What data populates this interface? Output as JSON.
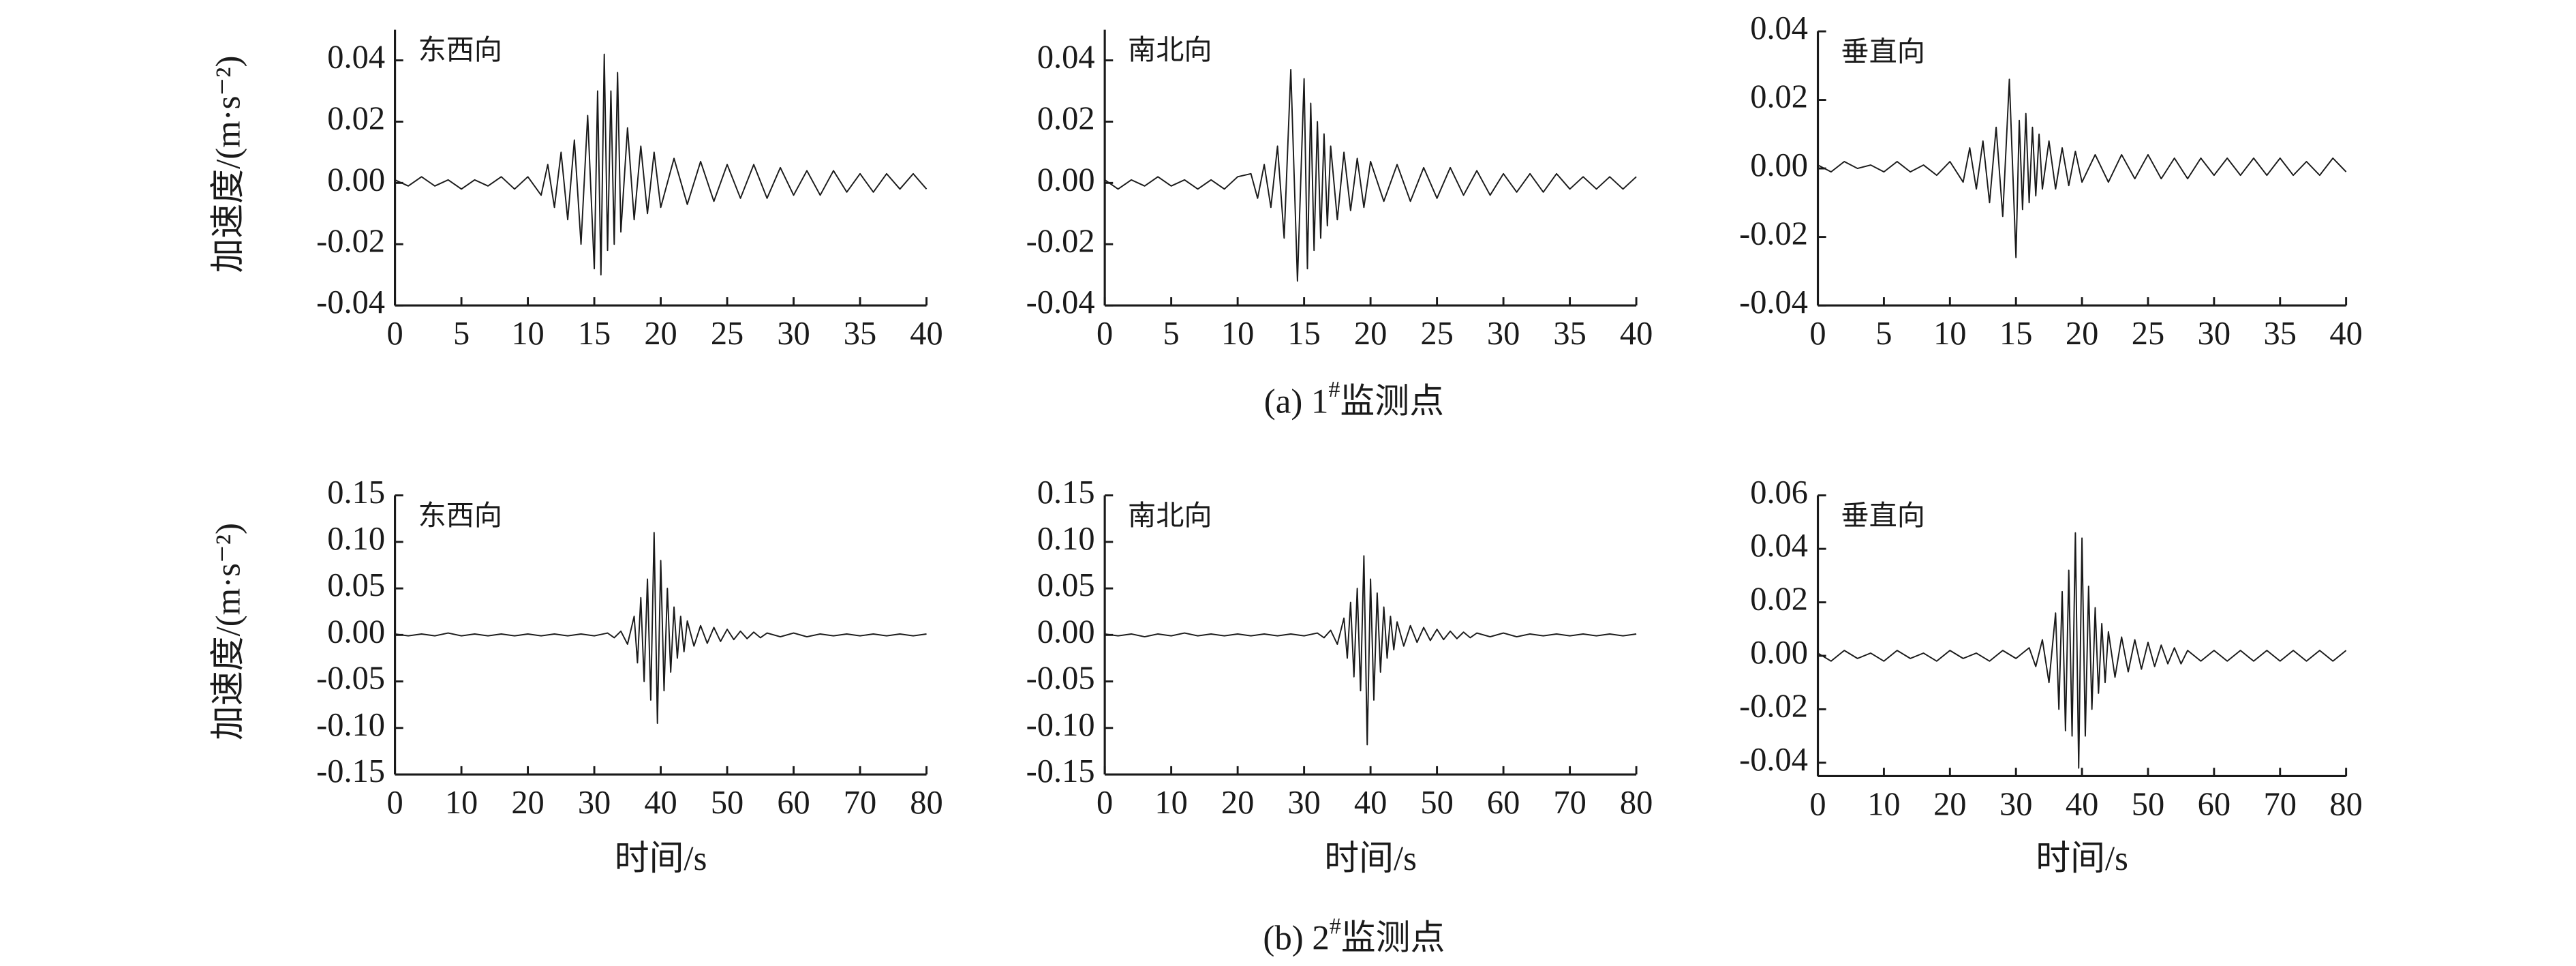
{
  "captions": [
    {
      "prefix": "(a) 1",
      "sup": "#",
      "suffix": "监测点"
    },
    {
      "prefix": "(b) 2",
      "sup": "#",
      "suffix": "监测点"
    }
  ],
  "chart_data": [
    {
      "type": "line",
      "title": "东西向",
      "y_label": "加速度/(m·s⁻²)",
      "xlim": [
        0,
        40
      ],
      "ylim": [
        -0.04,
        0.05
      ],
      "xticks": [
        0,
        5,
        10,
        15,
        20,
        25,
        30,
        35,
        40
      ],
      "yticks": [
        -0.04,
        -0.02,
        {
          "value": 0,
          "label": "0.00"
        },
        0.02,
        0.04
      ],
      "x": [
        0,
        1,
        2,
        3,
        4,
        5,
        6,
        7,
        8,
        9,
        10,
        11,
        11.5,
        12,
        12.5,
        13,
        13.5,
        14,
        14.5,
        15,
        15.25,
        15.5,
        15.75,
        16,
        16.25,
        16.5,
        16.75,
        17,
        17.5,
        18,
        18.5,
        19,
        19.5,
        20,
        21,
        22,
        23,
        24,
        25,
        26,
        27,
        28,
        29,
        30,
        31,
        32,
        33,
        34,
        35,
        36,
        37,
        38,
        39,
        40
      ],
      "series": [
        {
          "color": "#1a1a1a",
          "values": [
            0.001,
            -0.001,
            0.002,
            -0.001,
            0.001,
            -0.002,
            0.001,
            -0.001,
            0.002,
            -0.002,
            0.002,
            -0.004,
            0.006,
            -0.008,
            0.01,
            -0.012,
            0.014,
            -0.02,
            0.022,
            -0.028,
            0.03,
            -0.03,
            0.042,
            -0.022,
            0.03,
            -0.02,
            0.036,
            -0.016,
            0.018,
            -0.012,
            0.012,
            -0.01,
            0.01,
            -0.008,
            0.008,
            -0.007,
            0.007,
            -0.006,
            0.006,
            -0.005,
            0.006,
            -0.005,
            0.005,
            -0.004,
            0.004,
            -0.004,
            0.004,
            -0.003,
            0.003,
            -0.003,
            0.003,
            -0.002,
            0.003,
            -0.002
          ]
        }
      ]
    },
    {
      "type": "line",
      "title": "南北向",
      "xlim": [
        0,
        40
      ],
      "ylim": [
        -0.04,
        0.05
      ],
      "xticks": [
        0,
        5,
        10,
        15,
        20,
        25,
        30,
        35,
        40
      ],
      "yticks": [
        -0.04,
        -0.02,
        {
          "value": 0,
          "label": "0.00"
        },
        0.02,
        0.04
      ],
      "x": [
        0,
        1,
        2,
        3,
        4,
        5,
        6,
        7,
        8,
        9,
        10,
        11,
        11.5,
        12,
        12.5,
        13,
        13.5,
        14,
        14.5,
        15,
        15.25,
        15.5,
        15.75,
        16,
        16.25,
        16.5,
        16.75,
        17,
        17.5,
        18,
        18.5,
        19,
        19.5,
        20,
        21,
        22,
        23,
        24,
        25,
        26,
        27,
        28,
        29,
        30,
        31,
        32,
        33,
        34,
        35,
        36,
        37,
        38,
        39,
        40
      ],
      "series": [
        {
          "color": "#1a1a1a",
          "values": [
            0.001,
            -0.002,
            0.001,
            -0.001,
            0.002,
            -0.001,
            0.001,
            -0.002,
            0.001,
            -0.002,
            0.002,
            0.003,
            -0.005,
            0.006,
            -0.008,
            0.012,
            -0.018,
            0.037,
            -0.032,
            0.034,
            -0.028,
            0.026,
            -0.022,
            0.02,
            -0.018,
            0.016,
            -0.014,
            0.012,
            -0.012,
            0.01,
            -0.009,
            0.008,
            -0.008,
            0.007,
            -0.006,
            0.006,
            -0.006,
            0.005,
            -0.005,
            0.005,
            -0.004,
            0.004,
            -0.004,
            0.003,
            -0.003,
            0.003,
            -0.003,
            0.003,
            -0.002,
            0.002,
            -0.002,
            0.002,
            -0.002,
            0.002
          ]
        }
      ]
    },
    {
      "type": "line",
      "title": "垂直向",
      "xlim": [
        0,
        40
      ],
      "ylim": [
        -0.04,
        0.04
      ],
      "xticks": [
        0,
        5,
        10,
        15,
        20,
        25,
        30,
        35,
        40
      ],
      "yticks": [
        -0.04,
        -0.02,
        {
          "value": 0,
          "label": "0.00"
        },
        0.02,
        0.04
      ],
      "x": [
        0,
        1,
        2,
        3,
        4,
        5,
        6,
        7,
        8,
        9,
        10,
        11,
        11.5,
        12,
        12.5,
        13,
        13.5,
        14,
        14.5,
        15,
        15.25,
        15.5,
        15.75,
        16,
        16.25,
        16.5,
        16.75,
        17,
        17.5,
        18,
        18.5,
        19,
        19.5,
        20,
        21,
        22,
        23,
        24,
        25,
        26,
        27,
        28,
        29,
        30,
        31,
        32,
        33,
        34,
        35,
        36,
        37,
        38,
        39,
        40
      ],
      "series": [
        {
          "color": "#1a1a1a",
          "values": [
            0.001,
            -0.001,
            0.002,
            0,
            0.001,
            -0.001,
            0.002,
            -0.001,
            0.001,
            -0.002,
            0.002,
            -0.004,
            0.006,
            -0.006,
            0.008,
            -0.01,
            0.012,
            -0.014,
            0.026,
            -0.026,
            0.014,
            -0.012,
            0.016,
            -0.01,
            0.012,
            -0.008,
            0.01,
            -0.006,
            0.008,
            -0.006,
            0.006,
            -0.005,
            0.005,
            -0.004,
            0.004,
            -0.004,
            0.004,
            -0.003,
            0.004,
            -0.003,
            0.003,
            -0.003,
            0.003,
            -0.002,
            0.003,
            -0.002,
            0.003,
            -0.002,
            0.003,
            -0.002,
            0.002,
            -0.002,
            0.003,
            -0.001
          ]
        }
      ]
    },
    {
      "type": "line",
      "title": "东西向",
      "y_label": "加速度/(m·s⁻²)",
      "x_label": "时间/s",
      "xlim": [
        0,
        80
      ],
      "ylim": [
        -0.15,
        0.15
      ],
      "xticks": [
        0,
        10,
        20,
        30,
        40,
        50,
        60,
        70,
        80
      ],
      "yticks": [
        -0.15,
        {
          "value": -0.1,
          "label": "-0.10"
        },
        -0.05,
        {
          "value": 0,
          "label": "0.00"
        },
        0.05,
        {
          "value": 0.1,
          "label": "0.10"
        },
        0.15
      ],
      "x": [
        0,
        2,
        4,
        6,
        8,
        10,
        12,
        14,
        16,
        18,
        20,
        22,
        24,
        26,
        28,
        30,
        32,
        33,
        34,
        35,
        36,
        36.5,
        37,
        37.5,
        38,
        38.5,
        39,
        39.5,
        40,
        40.5,
        41,
        41.5,
        42,
        42.5,
        43,
        43.5,
        44,
        45,
        46,
        47,
        48,
        49,
        50,
        51,
        52,
        53,
        54,
        55,
        56,
        58,
        60,
        62,
        64,
        66,
        68,
        70,
        72,
        74,
        76,
        78,
        80
      ],
      "series": [
        {
          "color": "#1a1a1a",
          "values": [
            0.001,
            -0.001,
            0.001,
            -0.001,
            0.002,
            -0.001,
            0.001,
            -0.001,
            0.001,
            -0.001,
            0.001,
            -0.001,
            0.001,
            -0.001,
            0.001,
            -0.001,
            0.002,
            -0.003,
            0.004,
            -0.01,
            0.02,
            -0.03,
            0.04,
            -0.05,
            0.06,
            -0.07,
            0.11,
            -0.095,
            0.08,
            -0.06,
            0.05,
            -0.04,
            0.03,
            -0.025,
            0.02,
            -0.018,
            0.015,
            -0.012,
            0.01,
            -0.009,
            0.008,
            -0.007,
            0.006,
            -0.005,
            0.004,
            -0.004,
            0.003,
            -0.003,
            0.002,
            -0.002,
            0.002,
            -0.002,
            0.001,
            -0.001,
            0.001,
            -0.001,
            0.001,
            -0.001,
            0.001,
            -0.001,
            0.001
          ]
        }
      ]
    },
    {
      "type": "line",
      "title": "南北向",
      "x_label": "时间/s",
      "xlim": [
        0,
        80
      ],
      "ylim": [
        -0.15,
        0.15
      ],
      "xticks": [
        0,
        10,
        20,
        30,
        40,
        50,
        60,
        70,
        80
      ],
      "yticks": [
        -0.15,
        {
          "value": -0.1,
          "label": "-0.10"
        },
        -0.05,
        {
          "value": 0,
          "label": "0.00"
        },
        0.05,
        {
          "value": 0.1,
          "label": "0.10"
        },
        0.15
      ],
      "x": [
        0,
        2,
        4,
        6,
        8,
        10,
        12,
        14,
        16,
        18,
        20,
        22,
        24,
        26,
        28,
        30,
        32,
        33,
        34,
        35,
        36,
        36.5,
        37,
        37.5,
        38,
        38.5,
        39,
        39.5,
        40,
        40.5,
        41,
        41.5,
        42,
        42.5,
        43,
        43.5,
        44,
        45,
        46,
        47,
        48,
        49,
        50,
        51,
        52,
        53,
        54,
        55,
        56,
        58,
        60,
        62,
        64,
        66,
        68,
        70,
        72,
        74,
        76,
        78,
        80
      ],
      "series": [
        {
          "color": "#1a1a1a",
          "values": [
            0.001,
            -0.001,
            0.001,
            -0.002,
            0.001,
            -0.001,
            0.002,
            -0.001,
            0.001,
            -0.001,
            0.001,
            -0.001,
            0.001,
            -0.001,
            0.001,
            -0.001,
            0.002,
            -0.003,
            0.005,
            -0.01,
            0.018,
            -0.025,
            0.035,
            -0.045,
            0.05,
            -0.06,
            0.085,
            -0.118,
            0.06,
            -0.07,
            0.045,
            -0.04,
            0.03,
            -0.025,
            0.02,
            -0.016,
            0.014,
            -0.012,
            0.01,
            -0.008,
            0.008,
            -0.006,
            0.006,
            -0.005,
            0.004,
            -0.004,
            0.003,
            -0.003,
            0.002,
            -0.002,
            0.002,
            -0.002,
            0.001,
            -0.001,
            0.001,
            -0.001,
            0.001,
            -0.001,
            0.001,
            -0.001,
            0.001
          ]
        }
      ]
    },
    {
      "type": "line",
      "title": "垂直向",
      "x_label": "时间/s",
      "xlim": [
        0,
        80
      ],
      "ylim": [
        -0.045,
        0.06
      ],
      "xticks": [
        0,
        10,
        20,
        30,
        40,
        50,
        60,
        70,
        80
      ],
      "yticks": [
        -0.04,
        -0.02,
        {
          "value": 0,
          "label": "0.00"
        },
        0.02,
        0.04,
        0.06
      ],
      "x": [
        0,
        2,
        4,
        6,
        8,
        10,
        12,
        14,
        16,
        18,
        20,
        22,
        24,
        26,
        28,
        30,
        32,
        33,
        34,
        35,
        36,
        36.5,
        37,
        37.5,
        38,
        38.5,
        39,
        39.5,
        40,
        40.5,
        41,
        41.5,
        42,
        42.5,
        43,
        43.5,
        44,
        45,
        46,
        47,
        48,
        49,
        50,
        51,
        52,
        53,
        54,
        55,
        56,
        58,
        60,
        62,
        64,
        66,
        68,
        70,
        72,
        74,
        76,
        78,
        80
      ],
      "series": [
        {
          "color": "#1a1a1a",
          "values": [
            0.001,
            -0.002,
            0.002,
            -0.001,
            0.001,
            -0.002,
            0.002,
            -0.001,
            0.001,
            -0.002,
            0.002,
            -0.001,
            0.001,
            -0.002,
            0.002,
            -0.001,
            0.003,
            -0.004,
            0.006,
            -0.01,
            0.016,
            -0.02,
            0.024,
            -0.028,
            0.032,
            -0.03,
            0.046,
            -0.042,
            0.044,
            -0.03,
            0.026,
            -0.02,
            0.018,
            -0.014,
            0.012,
            -0.01,
            0.009,
            -0.008,
            0.007,
            -0.006,
            0.006,
            -0.005,
            0.005,
            -0.004,
            0.004,
            -0.003,
            0.003,
            -0.003,
            0.002,
            -0.002,
            0.002,
            -0.002,
            0.002,
            -0.002,
            0.002,
            -0.002,
            0.002,
            -0.002,
            0.002,
            -0.002,
            0.002
          ]
        }
      ]
    }
  ]
}
